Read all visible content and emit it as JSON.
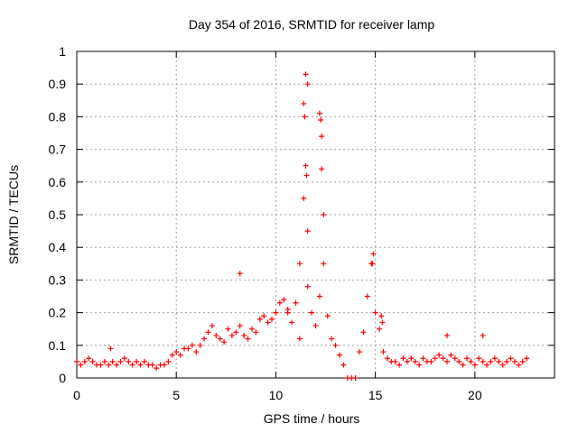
{
  "chart_data": {
    "type": "scatter",
    "title": "Day 354 of 2016, SRMTID for receiver lamp",
    "xlabel": "GPS time / hours",
    "ylabel": "SRMTID / TECUs",
    "xlim": [
      0,
      24
    ],
    "ylim": [
      0,
      1
    ],
    "xticks": [
      "0",
      "5",
      "10",
      "15",
      "20"
    ],
    "yticks": [
      "0",
      "0.1",
      "0.2",
      "0.3",
      "0.4",
      "0.5",
      "0.6",
      "0.7",
      "0.8",
      "0.9",
      "1"
    ],
    "grid": true,
    "marker": "+",
    "color": "#ff0000",
    "series": [
      {
        "name": "SRMTID",
        "x": [
          0.0,
          0.2,
          0.4,
          0.6,
          0.8,
          1.0,
          1.2,
          1.4,
          1.6,
          1.8,
          2.0,
          2.2,
          2.4,
          2.6,
          2.8,
          3.0,
          3.2,
          3.4,
          3.6,
          3.8,
          4.0,
          4.2,
          4.4,
          4.6,
          4.8,
          5.0,
          5.2,
          5.4,
          5.6,
          5.8,
          6.0,
          6.2,
          6.4,
          6.6,
          6.8,
          7.0,
          7.2,
          7.4,
          7.6,
          7.8,
          8.0,
          8.2,
          8.4,
          8.6,
          8.8,
          9.0,
          9.2,
          9.4,
          9.6,
          9.8,
          10.0,
          10.2,
          10.4,
          10.6,
          10.8,
          11.0,
          11.2,
          11.4,
          11.6,
          11.8,
          12.0,
          12.2,
          12.4,
          12.6,
          12.8,
          13.0,
          13.2,
          13.4,
          13.6,
          13.8,
          14.0,
          14.2,
          14.4,
          14.6,
          14.8,
          15.0,
          15.2,
          15.4,
          15.6,
          15.8,
          16.0,
          16.2,
          16.4,
          16.6,
          16.8,
          17.0,
          17.2,
          17.4,
          17.6,
          17.8,
          18.0,
          18.2,
          18.4,
          18.6,
          18.8,
          19.0,
          19.2,
          19.4,
          19.6,
          19.8,
          20.0,
          20.2,
          20.4,
          20.6,
          20.8,
          21.0,
          21.2,
          21.4,
          21.6,
          21.8,
          22.0,
          22.2,
          22.4,
          22.6,
          1.7,
          8.2,
          11.5,
          11.6,
          11.4,
          11.45,
          12.2,
          12.25,
          11.5,
          11.55,
          12.3,
          12.4,
          12.3,
          11.6,
          14.9,
          14.85,
          18.6,
          20.4,
          15.3,
          15.35,
          11.2,
          10.6
        ],
        "y": [
          0.05,
          0.04,
          0.05,
          0.06,
          0.05,
          0.04,
          0.04,
          0.05,
          0.04,
          0.05,
          0.04,
          0.05,
          0.06,
          0.05,
          0.04,
          0.05,
          0.04,
          0.05,
          0.04,
          0.04,
          0.03,
          0.04,
          0.04,
          0.05,
          0.07,
          0.08,
          0.07,
          0.09,
          0.09,
          0.1,
          0.08,
          0.1,
          0.12,
          0.14,
          0.16,
          0.13,
          0.12,
          0.11,
          0.15,
          0.13,
          0.14,
          0.16,
          0.13,
          0.12,
          0.15,
          0.14,
          0.18,
          0.19,
          0.17,
          0.18,
          0.2,
          0.23,
          0.24,
          0.2,
          0.17,
          0.23,
          0.35,
          0.55,
          0.28,
          0.2,
          0.16,
          0.25,
          0.35,
          0.19,
          0.12,
          0.1,
          0.07,
          0.04,
          0.0,
          0.0,
          0.0,
          0.08,
          0.14,
          0.25,
          0.35,
          0.2,
          0.15,
          0.08,
          0.06,
          0.05,
          0.05,
          0.04,
          0.06,
          0.05,
          0.06,
          0.05,
          0.04,
          0.06,
          0.05,
          0.05,
          0.06,
          0.07,
          0.06,
          0.05,
          0.07,
          0.06,
          0.05,
          0.04,
          0.06,
          0.05,
          0.04,
          0.06,
          0.05,
          0.04,
          0.05,
          0.06,
          0.05,
          0.04,
          0.05,
          0.06,
          0.05,
          0.04,
          0.05,
          0.06,
          0.09,
          0.32,
          0.93,
          0.9,
          0.84,
          0.8,
          0.81,
          0.79,
          0.65,
          0.62,
          0.74,
          0.5,
          0.64,
          0.45,
          0.38,
          0.35,
          0.13,
          0.13,
          0.19,
          0.17,
          0.12,
          0.21
        ]
      }
    ]
  }
}
